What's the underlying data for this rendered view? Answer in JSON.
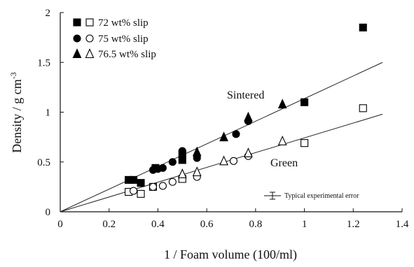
{
  "chart_data": {
    "type": "scatter",
    "title": "",
    "xlabel": "1 / Foam volume (100/ml)",
    "ylabel": "Density / g cm",
    "ylabel_superscript": "-3",
    "xlim": [
      0,
      1.4
    ],
    "ylim": [
      0,
      2
    ],
    "xticks": [
      "0",
      "0.2",
      "0.4",
      "0.6",
      "0.8",
      "1",
      "1.2",
      "1.4"
    ],
    "yticks": [
      "0",
      "0.5",
      "1",
      "1.5",
      "2"
    ],
    "grid": false,
    "legend_position": "top-left",
    "legend": [
      {
        "label": "72 wt% slip",
        "symbols": [
          "square-filled",
          "square-open"
        ]
      },
      {
        "label": "75 wt% slip",
        "symbols": [
          "circle-filled",
          "circle-open"
        ]
      },
      {
        "label": "76.5 wt% slip",
        "symbols": [
          "triangle-filled",
          "triangle-open"
        ]
      }
    ],
    "series": [
      {
        "group": "sintered",
        "marker": "square-filled",
        "x": [
          0.28,
          0.3,
          0.33,
          0.39,
          0.5,
          0.5,
          1.0,
          1.24
        ],
        "y": [
          0.32,
          0.32,
          0.29,
          0.44,
          0.52,
          0.58,
          1.1,
          1.85
        ]
      },
      {
        "group": "sintered",
        "marker": "circle-filled",
        "x": [
          0.38,
          0.4,
          0.42,
          0.46,
          0.5,
          0.56,
          0.72,
          0.77
        ],
        "y": [
          0.42,
          0.43,
          0.44,
          0.5,
          0.61,
          0.54,
          0.78,
          0.91
        ]
      },
      {
        "group": "sintered",
        "marker": "triangle-filled",
        "x": [
          0.56,
          0.67,
          0.77,
          0.91
        ],
        "y": [
          0.6,
          0.75,
          0.95,
          1.08
        ]
      },
      {
        "group": "green",
        "marker": "square-open",
        "x": [
          0.28,
          0.33,
          0.38,
          0.5,
          1.0,
          1.24
        ],
        "y": [
          0.2,
          0.18,
          0.25,
          0.33,
          0.69,
          1.04
        ]
      },
      {
        "group": "green",
        "marker": "circle-open",
        "x": [
          0.3,
          0.38,
          0.42,
          0.46,
          0.56,
          0.71,
          0.77
        ],
        "y": [
          0.21,
          0.25,
          0.26,
          0.3,
          0.35,
          0.51,
          0.56
        ]
      },
      {
        "group": "green",
        "marker": "triangle-open",
        "x": [
          0.5,
          0.56,
          0.67,
          0.77,
          0.91
        ],
        "y": [
          0.38,
          0.4,
          0.51,
          0.59,
          0.71
        ]
      }
    ],
    "fit_lines": [
      {
        "label": "Sintered",
        "x": [
          0,
          1.32
        ],
        "y": [
          0,
          1.5
        ]
      },
      {
        "label": "Green",
        "x": [
          0,
          1.32
        ],
        "y": [
          0,
          0.98
        ]
      }
    ],
    "annotations": {
      "sintered": "Sintered",
      "green": "Green",
      "error_legend": "Typical experimental error"
    }
  }
}
